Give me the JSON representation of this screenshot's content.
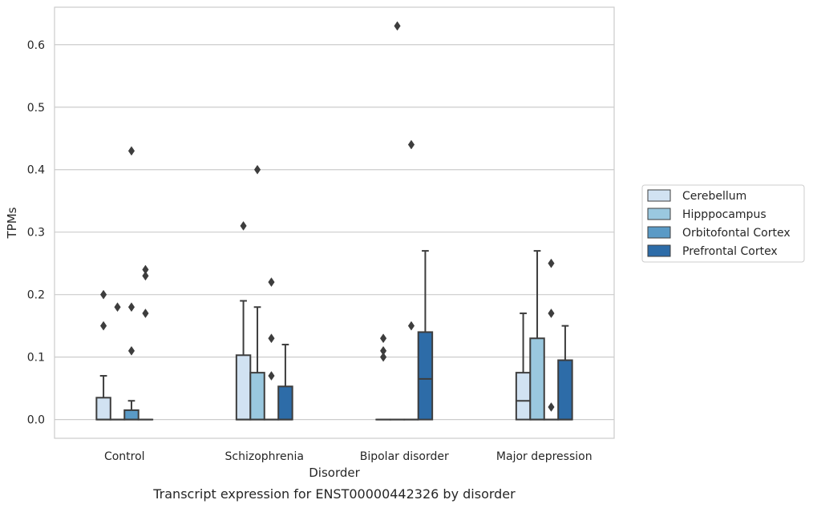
{
  "chart_data": {
    "type": "box",
    "title": "Transcript expression for ENST00000442326 by disorder",
    "xlabel": "Disorder",
    "ylabel": "TPMs",
    "categories": [
      "Control",
      "Schizophrenia",
      "Bipolar disorder",
      "Major depression"
    ],
    "ylim": [
      -0.03,
      0.66
    ],
    "yticks": [
      0.0,
      0.1,
      0.2,
      0.3,
      0.4,
      0.5,
      0.6
    ],
    "ytick_labels": [
      "0.0",
      "0.1",
      "0.2",
      "0.3",
      "0.4",
      "0.5",
      "0.6"
    ],
    "grid": "horizontal",
    "legend_position": "right",
    "series": [
      {
        "name": "Cerebellum",
        "color": "#d1e2f2",
        "boxes": [
          {
            "q1": 0.0,
            "median": 0.0,
            "q3": 0.035,
            "whisker_low": 0.0,
            "whisker_high": 0.07,
            "outliers": [
              0.15,
              0.2
            ]
          },
          {
            "q1": 0.0,
            "median": 0.0,
            "q3": 0.103,
            "whisker_low": 0.0,
            "whisker_high": 0.19,
            "outliers": [
              0.31
            ]
          },
          {
            "q1": 0.0,
            "median": 0.0,
            "q3": 0.0,
            "whisker_low": 0.0,
            "whisker_high": 0.0,
            "outliers": [
              0.1,
              0.11,
              0.13
            ]
          },
          {
            "q1": 0.0,
            "median": 0.03,
            "q3": 0.075,
            "whisker_low": 0.0,
            "whisker_high": 0.17,
            "outliers": []
          }
        ]
      },
      {
        "name": "Hipppocampus",
        "color": "#9ac8df",
        "boxes": [
          {
            "q1": 0.0,
            "median": 0.0,
            "q3": 0.0,
            "whisker_low": 0.0,
            "whisker_high": 0.0,
            "outliers": [
              0.18
            ]
          },
          {
            "q1": 0.0,
            "median": 0.0,
            "q3": 0.075,
            "whisker_low": 0.0,
            "whisker_high": 0.18,
            "outliers": [
              0.4
            ]
          },
          {
            "q1": 0.0,
            "median": 0.0,
            "q3": 0.0,
            "whisker_low": 0.0,
            "whisker_high": 0.0,
            "outliers": [
              0.63
            ]
          },
          {
            "q1": 0.0,
            "median": 0.0,
            "q3": 0.13,
            "whisker_low": 0.0,
            "whisker_high": 0.27,
            "outliers": []
          }
        ]
      },
      {
        "name": "Orbitofontal Cortex",
        "color": "#5a9ac6",
        "boxes": [
          {
            "q1": 0.0,
            "median": 0.0,
            "q3": 0.015,
            "whisker_low": 0.0,
            "whisker_high": 0.03,
            "outliers": [
              0.11,
              0.18,
              0.43
            ]
          },
          {
            "q1": 0.0,
            "median": 0.0,
            "q3": 0.0,
            "whisker_low": 0.0,
            "whisker_high": 0.0,
            "outliers": [
              0.07,
              0.13,
              0.22
            ]
          },
          {
            "q1": 0.0,
            "median": 0.0,
            "q3": 0.0,
            "whisker_low": 0.0,
            "whisker_high": 0.0,
            "outliers": [
              0.15,
              0.44
            ]
          },
          {
            "q1": 0.0,
            "median": 0.0,
            "q3": 0.0,
            "whisker_low": 0.0,
            "whisker_high": 0.0,
            "outliers": [
              0.02,
              0.17,
              0.25
            ]
          }
        ]
      },
      {
        "name": "Prefrontal Cortex",
        "color": "#2d6ca8",
        "boxes": [
          {
            "q1": 0.0,
            "median": 0.0,
            "q3": 0.0,
            "whisker_low": 0.0,
            "whisker_high": 0.0,
            "outliers": [
              0.17,
              0.23,
              0.24
            ]
          },
          {
            "q1": 0.0,
            "median": 0.0,
            "q3": 0.053,
            "whisker_low": 0.0,
            "whisker_high": 0.12,
            "outliers": []
          },
          {
            "q1": 0.0,
            "median": 0.065,
            "q3": 0.14,
            "whisker_low": 0.0,
            "whisker_high": 0.27,
            "outliers": []
          },
          {
            "q1": 0.0,
            "median": 0.0,
            "q3": 0.095,
            "whisker_low": 0.0,
            "whisker_high": 0.15,
            "outliers": []
          }
        ]
      }
    ]
  },
  "style": {
    "grid_color": "#cccccc",
    "frame_color": "#cccccc",
    "line_color": "#3d3d3d"
  }
}
